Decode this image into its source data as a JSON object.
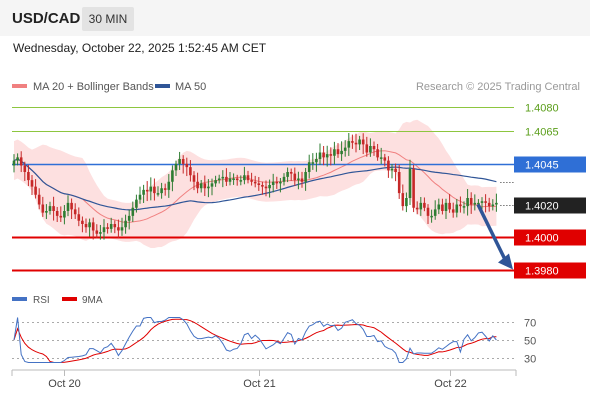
{
  "header": {
    "symbol": "USD/CAD",
    "timeframe": "30 MIN"
  },
  "datetime": "Wednesday, October 22, 2025 1:52:45 AM CET",
  "legend": {
    "ma20": "MA 20 + Bollinger Bands",
    "ma50": "MA 50",
    "credit": "Research © 2025 Trading Central"
  },
  "colors": {
    "bull": "#2e7d32",
    "bear": "#c62828",
    "ma20": "#f08080",
    "band_fill": "#fde0e0",
    "ma50": "#2f5597",
    "resistance": "#8dc63f",
    "pivot": "#2f6fd6",
    "support": "#e00000",
    "arrow": "#2f5597",
    "rsi": "#4472c4",
    "rsi_ma": "#e00000"
  },
  "levels": [
    {
      "value": 1.408,
      "label": "1.4080",
      "kind": "resistance"
    },
    {
      "value": 1.4065,
      "label": "1.4065",
      "kind": "resistance"
    },
    {
      "value": 1.4045,
      "label": "1.4045",
      "kind": "pivot"
    },
    {
      "value": 1.402,
      "label": "1.4020",
      "kind": "last"
    },
    {
      "value": 1.4,
      "label": "1.4000",
      "kind": "support"
    },
    {
      "value": 1.398,
      "label": "1.3980",
      "kind": "support"
    }
  ],
  "rsi_legend": {
    "rsi": "RSI",
    "ma": "9MA"
  },
  "rsi_ticks": [
    "70",
    "50",
    "30"
  ],
  "x_labels": [
    "Oct 20",
    "Oct 21",
    "Oct 22"
  ],
  "chart_data": {
    "type": "candlestick",
    "ylim": [
      1.3965,
      1.4092
    ],
    "x_ticks": [
      {
        "index": 14,
        "label": "Oct 20"
      },
      {
        "index": 68,
        "label": "Oct 21"
      },
      {
        "index": 121,
        "label": "Oct 22"
      }
    ],
    "closes": [
      1.4047,
      1.4049,
      1.4044,
      1.404,
      1.4035,
      1.4031,
      1.4026,
      1.402,
      1.4015,
      1.4016,
      1.4019,
      1.4016,
      1.4013,
      1.4012,
      1.4016,
      1.4021,
      1.4017,
      1.4014,
      1.401,
      1.4008,
      1.4006,
      1.4009,
      1.4004,
      1.4002,
      1.4003,
      1.4006,
      1.4005,
      1.4008,
      1.4006,
      1.4004,
      1.4006,
      1.401,
      1.4013,
      1.4018,
      1.4023,
      1.4026,
      1.4029,
      1.4028,
      1.4031,
      1.4027,
      1.4027,
      1.403,
      1.4029,
      1.4034,
      1.4041,
      1.4045,
      1.4048,
      1.4045,
      1.4043,
      1.4038,
      1.4034,
      1.403,
      1.4033,
      1.403,
      1.4031,
      1.4033,
      1.4035,
      1.4036,
      1.4037,
      1.4034,
      1.4036,
      1.4036,
      1.4035,
      1.4035,
      1.4038,
      1.4035,
      1.4034,
      1.4033,
      1.4032,
      1.4031,
      1.403,
      1.4032,
      1.4034,
      1.4033,
      1.4034,
      1.4037,
      1.404,
      1.4039,
      1.4035,
      1.4036,
      1.4034,
      1.404,
      1.4046,
      1.4046,
      1.4048,
      1.4052,
      1.4049,
      1.4051,
      1.405,
      1.4054,
      1.4051,
      1.4053,
      1.4055,
      1.4059,
      1.4058,
      1.4057,
      1.406,
      1.4057,
      1.4052,
      1.4056,
      1.4054,
      1.4049,
      1.4049,
      1.4047,
      1.4041,
      1.4042,
      1.404,
      1.4027,
      1.4019,
      1.4024,
      1.4042,
      1.4018,
      1.4017,
      1.4021,
      1.4018,
      1.4013,
      1.4013,
      1.4017,
      1.402,
      1.4016,
      1.4021,
      1.4017,
      1.4015,
      1.402,
      1.4019,
      1.4019,
      1.4024,
      1.402,
      1.4021,
      1.4021,
      1.4022,
      1.4021,
      1.4019,
      1.402,
      1.4021
    ],
    "rsi": {
      "ylim": [
        20,
        80
      ],
      "ticks": [
        70,
        50,
        30
      ]
    },
    "forecast": {
      "from": 1.402,
      "to": 1.398
    }
  }
}
